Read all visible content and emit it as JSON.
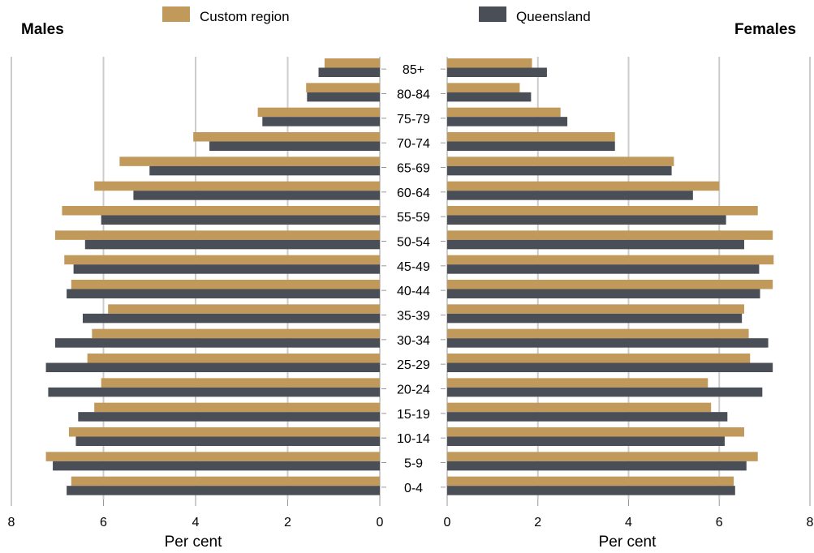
{
  "chart_data": {
    "type": "bar",
    "orientation": "horizontal",
    "layout": "population-pyramid",
    "left_panel_title": "Males",
    "right_panel_title": "Females",
    "categories": [
      "85+",
      "80-84",
      "75-79",
      "70-74",
      "65-69",
      "60-64",
      "55-59",
      "50-54",
      "45-49",
      "40-44",
      "35-39",
      "30-34",
      "25-29",
      "20-24",
      "15-19",
      "10-14",
      "5-9",
      "0-4"
    ],
    "series": [
      {
        "name": "Custom region",
        "color": "#c19a5b",
        "males": [
          1.2,
          1.6,
          2.65,
          4.05,
          5.65,
          6.2,
          6.9,
          7.05,
          6.85,
          6.7,
          5.9,
          6.25,
          6.35,
          6.05,
          6.2,
          6.75,
          7.25,
          6.7
        ],
        "females": [
          1.87,
          1.6,
          2.5,
          3.7,
          5.0,
          6.0,
          6.85,
          7.18,
          7.2,
          7.18,
          6.55,
          6.65,
          6.68,
          5.75,
          5.82,
          6.55,
          6.85,
          6.32
        ]
      },
      {
        "name": "Queensland",
        "color": "#4a4f57",
        "males": [
          1.33,
          1.58,
          2.55,
          3.7,
          5.0,
          5.35,
          6.05,
          6.4,
          6.65,
          6.8,
          6.45,
          7.05,
          7.25,
          7.2,
          6.55,
          6.6,
          7.1,
          6.8
        ],
        "females": [
          2.2,
          1.85,
          2.65,
          3.7,
          4.95,
          5.42,
          6.15,
          6.55,
          6.88,
          6.9,
          6.5,
          7.08,
          7.18,
          6.95,
          6.18,
          6.12,
          6.6,
          6.35
        ]
      }
    ],
    "x_ticks": [
      8,
      6,
      4,
      2,
      0
    ],
    "xlim": [
      0,
      8
    ],
    "xlabel_left": "Per cent",
    "xlabel_right": "Per cent",
    "grid": true,
    "legend_position": "top"
  }
}
